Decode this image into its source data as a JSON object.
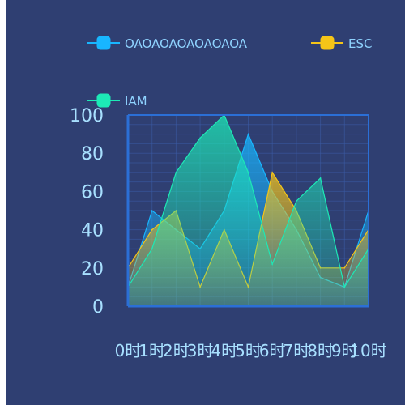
{
  "chart_data": {
    "type": "area",
    "x": [
      "0时",
      "1时",
      "2时",
      "3时",
      "4时",
      "5时",
      "6时",
      "7时",
      "8时",
      "9时",
      "10时"
    ],
    "series": [
      {
        "name": "OAOAOAOAOAOAOA",
        "values": [
          10,
          50,
          40,
          30,
          50,
          90,
          60,
          40,
          15,
          10,
          50
        ],
        "color": "#18b6ff"
      },
      {
        "name": "ESC",
        "values": [
          20,
          40,
          50,
          10,
          40,
          10,
          70,
          50,
          20,
          20,
          40
        ],
        "color": "#f5c518"
      },
      {
        "name": "IAM",
        "values": [
          10,
          30,
          70,
          88,
          100,
          70,
          22,
          55,
          67,
          10,
          30
        ],
        "color": "#1de9b6"
      }
    ],
    "ylim": [
      0,
      100
    ],
    "yticks": [
      0,
      20,
      40,
      60,
      80,
      100
    ],
    "grid": true,
    "legend_position": "top",
    "background": "#2f3f72",
    "axis_color": "#2b6fd6",
    "grid_color": "#3d5ca8",
    "tick_color": "#a8e0ff"
  }
}
